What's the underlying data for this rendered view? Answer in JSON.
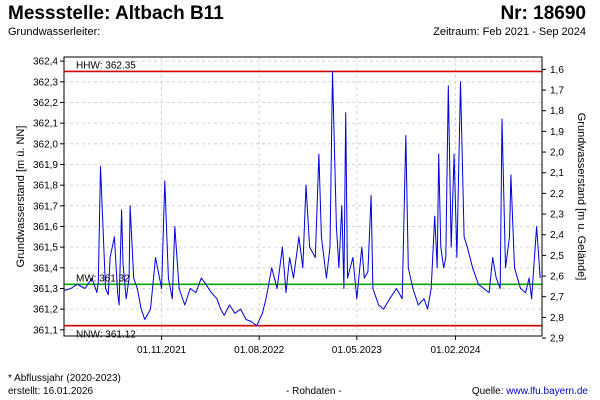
{
  "header": {
    "title": "Messstelle: Altbach B11",
    "nr": "Nr: 18690",
    "leiter": "Grundwasserleiter:",
    "zeitraum": "Zeitraum: Feb 2021 - Sep 2024"
  },
  "footer": {
    "note": "* Abflussjahr (2020-2023)",
    "erstellt": "erstellt:  16.01.2026",
    "rohdaten": "- Rohdaten -",
    "quelle_prefix": "Quelle: ",
    "quelle_url": "www.lfu.bayern.de"
  },
  "colors": {
    "series": "#0000dd",
    "extreme_lines": "#dd0000",
    "mean_line": "#00aa00",
    "grid": "#cccccc"
  },
  "chart_data": {
    "type": "line",
    "ylabel_left": "Grundwasserstand [m ü. NN]",
    "ylabel_right": "Grundwasserstand [m u. Gelände]",
    "ylim": [
      361.07,
      362.42
    ],
    "y_ticks": [
      "362,4",
      "362,3",
      "362,2",
      "362,1",
      "362,0",
      "361,9",
      "361,8",
      "361,7",
      "361,6",
      "361,5",
      "361,4",
      "361,3",
      "361,2",
      "361,1"
    ],
    "y_ticks_values": [
      362.4,
      362.3,
      362.2,
      362.1,
      362.0,
      361.9,
      361.8,
      361.7,
      361.6,
      361.5,
      361.4,
      361.3,
      361.2,
      361.1
    ],
    "right_ticks": [
      "1,6",
      "1,7",
      "1,8",
      "1,9",
      "2,0",
      "2,1",
      "2,2",
      "2,3",
      "2,4",
      "2,5",
      "2,6",
      "2,7",
      "2,8",
      "2,9"
    ],
    "right_ticks_depth": [
      1.6,
      1.7,
      1.8,
      1.9,
      2.0,
      2.1,
      2.2,
      2.3,
      2.4,
      2.5,
      2.6,
      2.7,
      2.8,
      2.9
    ],
    "ground_level": 363.96,
    "x_range": [
      "2021-02-01",
      "2024-09-30"
    ],
    "x_ticks": [
      "01.11.2021",
      "01.08.2022",
      "01.05.2023",
      "01.02.2024"
    ],
    "x_ticks_dates": [
      "2021-11-01",
      "2022-08-01",
      "2023-05-01",
      "2024-02-01"
    ],
    "grid": true,
    "reference_lines": [
      {
        "label": "HHW: 362.35",
        "value": 362.35,
        "kind": "extreme"
      },
      {
        "label": "MW: 361.32",
        "value": 361.32,
        "kind": "mean"
      },
      {
        "label": "NNW: 361.12",
        "value": 361.12,
        "kind": "extreme"
      }
    ],
    "series": [
      {
        "x": [
          "2021-02-01",
          "2021-02-20",
          "2021-03-10",
          "2021-04-01",
          "2021-04-20",
          "2021-05-04",
          "2021-05-08",
          "2021-05-14",
          "2021-05-28",
          "2021-06-05",
          "2021-06-10",
          "2021-06-22",
          "2021-07-01",
          "2021-07-05",
          "2021-07-12",
          "2021-07-16",
          "2021-07-25",
          "2021-08-02",
          "2021-08-05",
          "2021-08-15",
          "2021-08-25",
          "2021-09-05",
          "2021-09-15",
          "2021-10-01",
          "2021-10-15",
          "2021-11-01",
          "2021-11-10",
          "2021-11-20",
          "2021-12-01",
          "2021-12-08",
          "2021-12-20",
          "2022-01-05",
          "2022-01-20",
          "2022-02-05",
          "2022-02-20",
          "2022-03-05",
          "2022-03-20",
          "2022-04-05",
          "2022-04-15",
          "2022-04-25",
          "2022-05-10",
          "2022-05-25",
          "2022-06-10",
          "2022-06-25",
          "2022-07-10",
          "2022-07-25",
          "2022-08-10",
          "2022-08-20",
          "2022-09-05",
          "2022-09-20",
          "2022-10-05",
          "2022-10-15",
          "2022-10-25",
          "2022-11-05",
          "2022-11-20",
          "2022-12-01",
          "2022-12-10",
          "2022-12-20",
          "2023-01-05",
          "2023-01-15",
          "2023-01-22",
          "2023-02-05",
          "2023-02-15",
          "2023-02-22",
          "2023-03-05",
          "2023-03-12",
          "2023-03-20",
          "2023-03-26",
          "2023-03-31",
          "2023-04-05",
          "2023-04-20",
          "2023-05-01",
          "2023-05-15",
          "2023-05-22",
          "2023-06-01",
          "2023-06-10",
          "2023-06-15",
          "2023-07-01",
          "2023-07-15",
          "2023-08-01",
          "2023-08-20",
          "2023-09-05",
          "2023-09-15",
          "2023-09-22",
          "2023-10-05",
          "2023-10-20",
          "2023-11-05",
          "2023-11-15",
          "2023-11-25",
          "2023-12-05",
          "2023-12-12",
          "2023-12-16",
          "2023-12-22",
          "2023-12-30",
          "2024-01-05",
          "2024-01-12",
          "2024-01-20",
          "2024-01-28",
          "2024-02-05",
          "2024-02-15",
          "2024-02-25",
          "2024-03-05",
          "2024-03-20",
          "2024-04-05",
          "2024-04-20",
          "2024-05-05",
          "2024-05-15",
          "2024-05-25",
          "2024-06-05",
          "2024-06-10",
          "2024-06-20",
          "2024-07-01",
          "2024-07-05",
          "2024-07-15",
          "2024-08-01",
          "2024-08-15",
          "2024-08-25",
          "2024-09-01",
          "2024-09-15",
          "2024-09-25"
        ],
        "y": [
          361.29,
          361.3,
          361.32,
          361.3,
          361.35,
          361.28,
          361.33,
          361.89,
          361.3,
          361.27,
          361.45,
          361.55,
          361.28,
          361.22,
          361.68,
          361.42,
          361.25,
          361.35,
          361.7,
          361.35,
          361.3,
          361.2,
          361.15,
          361.2,
          361.45,
          361.3,
          361.82,
          361.35,
          361.25,
          361.6,
          361.3,
          361.22,
          361.3,
          361.28,
          361.35,
          361.32,
          361.28,
          361.25,
          361.2,
          361.17,
          361.22,
          361.18,
          361.2,
          361.15,
          361.14,
          361.12,
          361.18,
          361.25,
          361.4,
          361.3,
          361.5,
          361.28,
          361.45,
          361.35,
          361.55,
          361.4,
          361.8,
          361.5,
          361.45,
          361.95,
          361.55,
          361.35,
          361.5,
          362.35,
          361.6,
          361.4,
          361.7,
          361.3,
          362.15,
          361.35,
          361.45,
          361.25,
          361.5,
          361.35,
          361.38,
          361.75,
          361.3,
          361.22,
          361.2,
          361.25,
          361.3,
          361.25,
          362.04,
          361.4,
          361.3,
          361.22,
          361.25,
          361.2,
          361.3,
          361.65,
          361.4,
          361.95,
          361.5,
          361.4,
          361.45,
          362.28,
          361.5,
          361.95,
          361.45,
          362.3,
          361.55,
          361.5,
          361.4,
          361.32,
          361.3,
          361.28,
          361.45,
          361.35,
          361.3,
          362.12,
          361.4,
          361.55,
          361.85,
          361.4,
          361.3,
          361.28,
          361.35,
          361.25,
          361.6,
          361.35
        ]
      }
    ]
  }
}
